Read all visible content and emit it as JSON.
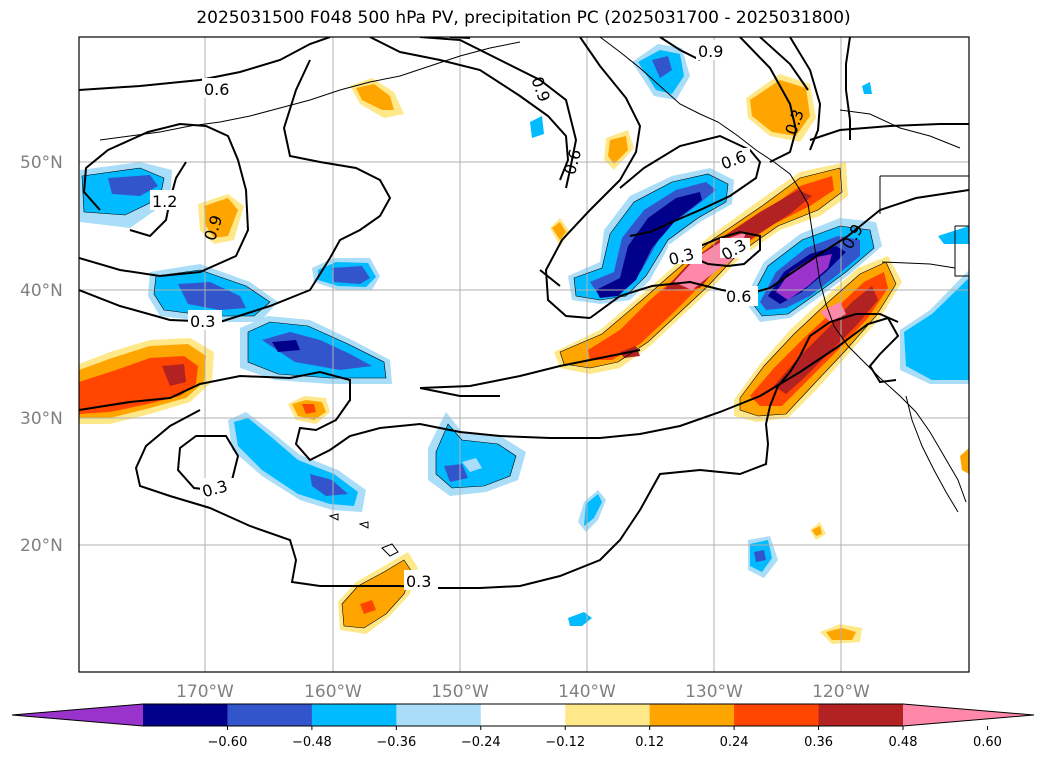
{
  "title": "2025031500 F048 500 hPa PV, precipitation PC (2025031700 - 2025031800)",
  "lat_labels": [
    "50°N",
    "40°N",
    "30°N",
    "20°N"
  ],
  "lon_labels": [
    "170°W",
    "160°W",
    "150°W",
    "140°W",
    "130°W",
    "120°W"
  ],
  "colorbar": {
    "colors": [
      "#9933cc",
      "#00008b",
      "#3355cc",
      "#00bbff",
      "#aaddf7",
      "#ffffff",
      "#ffe88a",
      "#ffa500",
      "#ff4500",
      "#b22222",
      "#ff88aa"
    ],
    "tick_labels": [
      "−0.60",
      "−0.48",
      "−0.36",
      "−0.24",
      "−0.12",
      "0.12",
      "0.24",
      "0.36",
      "0.48",
      "0.60"
    ]
  },
  "contour_labels": [
    "0.6",
    "1.2",
    "0.9",
    "0.3",
    "0.9",
    "0.6",
    "0.9",
    "0.3",
    "0.6",
    "0.9",
    "0.3",
    "0.3",
    "0.6",
    "0.3"
  ]
}
